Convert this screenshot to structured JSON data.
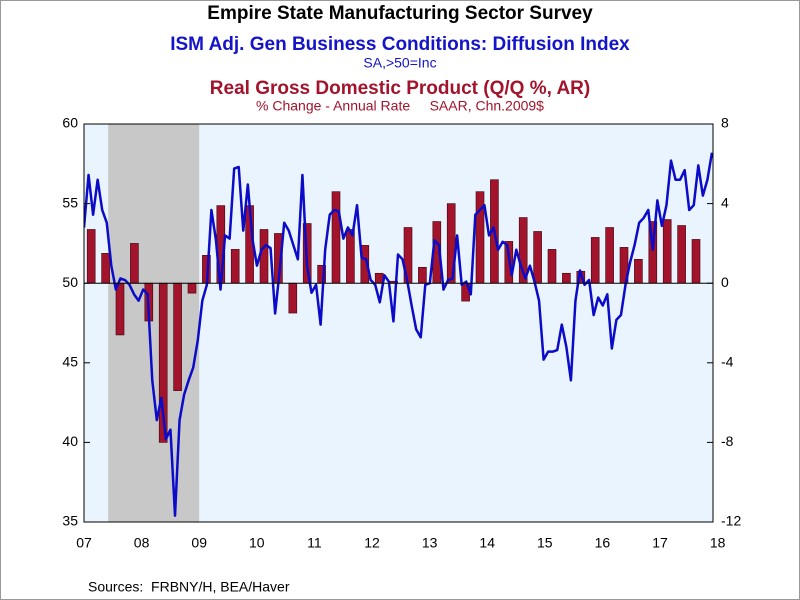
{
  "chart_data": {
    "type": "combo",
    "title": "Empire State Manufacturing Sector Survey",
    "source": "Sources:  FRBNY/H, BEA/Haver",
    "xlim": [
      2007.5,
      2018.42
    ],
    "xticks": [
      {
        "value": 2007.5,
        "label": "07"
      },
      {
        "value": 2008.5,
        "label": "08"
      },
      {
        "value": 2009.5,
        "label": "09"
      },
      {
        "value": 2010.5,
        "label": "10"
      },
      {
        "value": 2011.5,
        "label": "11"
      },
      {
        "value": 2012.5,
        "label": "12"
      },
      {
        "value": 2013.5,
        "label": "13"
      },
      {
        "value": 2014.5,
        "label": "14"
      },
      {
        "value": 2015.5,
        "label": "15"
      },
      {
        "value": 2016.5,
        "label": "16"
      },
      {
        "value": 2017.5,
        "label": "17"
      },
      {
        "value": 2018.5,
        "label": "18"
      }
    ],
    "ylim": [
      35,
      60
    ],
    "yticks": [
      35,
      40,
      45,
      50,
      55,
      60
    ],
    "y2lim": [
      -12,
      8
    ],
    "y2ticks": [
      -12,
      -8,
      -4,
      0,
      4,
      8
    ],
    "shading": [
      {
        "start": 2007.92,
        "end": 2009.5,
        "color": "#c8c8c8"
      }
    ],
    "background": "#eaf4fe",
    "series": [
      {
        "name": "ISM Adj. Gen Business Conditions: Diffusion Index",
        "units": "SA,>50=Inc",
        "type": "line",
        "axis": "y",
        "color": "#0b0bc8",
        "x": [
          2007.5,
          2007.579,
          2007.658,
          2007.737,
          2007.816,
          2007.895,
          2007.974,
          2008.053,
          2008.132,
          2008.211,
          2008.29,
          2008.369,
          2008.448,
          2008.527,
          2008.606,
          2008.685,
          2008.764,
          2008.843,
          2008.922,
          2009.001,
          2009.08,
          2009.159,
          2009.238,
          2009.317,
          2009.396,
          2009.475,
          2009.554,
          2009.633,
          2009.712,
          2009.791,
          2009.87,
          2009.949,
          2010.028,
          2010.107,
          2010.186,
          2010.265,
          2010.344,
          2010.423,
          2010.502,
          2010.581,
          2010.66,
          2010.739,
          2010.818,
          2010.897,
          2010.976,
          2011.055,
          2011.134,
          2011.213,
          2011.292,
          2011.371,
          2011.45,
          2011.529,
          2011.608,
          2011.687,
          2011.766,
          2011.845,
          2011.924,
          2012.003,
          2012.082,
          2012.161,
          2012.24,
          2012.319,
          2012.398,
          2012.477,
          2012.556,
          2012.635,
          2012.714,
          2012.793,
          2012.872,
          2012.951,
          2013.03,
          2013.109,
          2013.188,
          2013.267,
          2013.346,
          2013.425,
          2013.504,
          2013.583,
          2013.662,
          2013.741,
          2013.82,
          2013.899,
          2013.978,
          2014.057,
          2014.136,
          2014.215,
          2014.294,
          2014.373,
          2014.452,
          2014.531,
          2014.61,
          2014.689,
          2014.768,
          2014.847,
          2014.926,
          2015.005,
          2015.084,
          2015.163,
          2015.242,
          2015.321,
          2015.4,
          2015.479,
          2015.558,
          2015.637,
          2015.716,
          2015.795,
          2015.874,
          2015.953,
          2016.032,
          2016.111,
          2016.19,
          2016.269,
          2016.348,
          2016.427,
          2016.506,
          2016.585,
          2016.664,
          2016.743,
          2016.822,
          2016.901,
          2016.98,
          2017.059,
          2017.138,
          2017.217,
          2017.296,
          2017.375,
          2017.454,
          2017.533,
          2017.612,
          2017.691,
          2017.77,
          2017.849,
          2017.928,
          2018.007,
          2018.086,
          2018.165,
          2018.244,
          2018.323,
          2018.402
        ],
        "values": [
          53.5,
          56.8,
          54.3,
          56.5,
          54.6,
          53.8,
          51.1,
          49.6,
          50.3,
          50.2,
          49.9,
          49.3,
          48.9,
          49.6,
          49.3,
          43.9,
          41.4,
          42.8,
          40.2,
          40.8,
          35.4,
          41.4,
          43.0,
          43.9,
          44.7,
          46.4,
          48.9,
          49.9,
          54.6,
          52.7,
          49.6,
          53.0,
          52.8,
          57.2,
          57.3,
          53.3,
          56.2,
          52.8,
          51.1,
          52.1,
          52.4,
          52.2,
          48.1,
          50.8,
          53.8,
          53.3,
          52.4,
          51.5,
          56.8,
          51.1,
          49.4,
          49.9,
          47.4,
          52.1,
          54.3,
          54.6,
          54.5,
          52.8,
          53.5,
          53.0,
          54.9,
          51.6,
          51.5,
          50.2,
          49.9,
          48.8,
          50.5,
          50.1,
          47.6,
          51.8,
          51.5,
          50.2,
          48.6,
          47.1,
          46.6,
          49.9,
          50.0,
          52.7,
          52.4,
          49.6,
          50.2,
          50.3,
          53.0,
          49.9,
          50.1,
          49.3,
          54.3,
          54.6,
          54.9,
          53.0,
          53.5,
          52.1,
          52.6,
          52.4,
          50.5,
          52.1,
          51.1,
          50.3,
          51.1,
          50.1,
          48.9,
          45.2,
          45.7,
          45.7,
          45.8,
          47.4,
          46.0,
          43.9,
          48.9,
          50.8,
          49.9,
          50.2,
          48.0,
          49.1,
          48.6,
          49.3,
          45.9,
          47.7,
          48.0,
          49.9,
          51.3,
          52.4,
          53.8,
          54.1,
          54.6,
          52.1,
          55.2,
          53.6,
          54.9,
          57.7,
          56.5,
          56.5,
          57.1,
          54.6,
          54.9,
          57.4,
          55.5,
          56.5,
          58.2
        ]
      },
      {
        "name": "Real Gross Domestic Product (Q/Q %, AR)",
        "units": "% Change - Annual Rate     SAAR, Chn.2009$",
        "type": "bar",
        "axis": "y2",
        "color": "#a3142c",
        "x": [
          2007.625,
          2007.875,
          2008.125,
          2008.375,
          2008.625,
          2008.875,
          2009.125,
          2009.375,
          2009.625,
          2009.875,
          2010.125,
          2010.375,
          2010.625,
          2010.875,
          2011.125,
          2011.375,
          2011.625,
          2011.875,
          2012.125,
          2012.375,
          2012.625,
          2012.875,
          2013.125,
          2013.375,
          2013.625,
          2013.875,
          2014.125,
          2014.375,
          2014.625,
          2014.875,
          2015.125,
          2015.375,
          2015.625,
          2015.875,
          2016.125,
          2016.375,
          2016.625,
          2016.875,
          2017.125,
          2017.375,
          2017.625,
          2017.875,
          2018.125
        ],
        "values": [
          2.7,
          1.5,
          -2.6,
          2.0,
          -1.9,
          -8.0,
          -5.4,
          -0.5,
          1.4,
          3.9,
          1.7,
          3.9,
          2.7,
          2.5,
          -1.5,
          3.0,
          0.9,
          4.6,
          2.7,
          1.9,
          0.5,
          0.1,
          2.8,
          0.8,
          3.1,
          4.0,
          -0.9,
          4.6,
          5.2,
          2.1,
          3.3,
          2.6,
          1.7,
          0.5,
          0.6,
          2.3,
          2.8,
          1.8,
          1.2,
          3.1,
          3.2,
          2.9,
          2.2
        ]
      }
    ]
  }
}
